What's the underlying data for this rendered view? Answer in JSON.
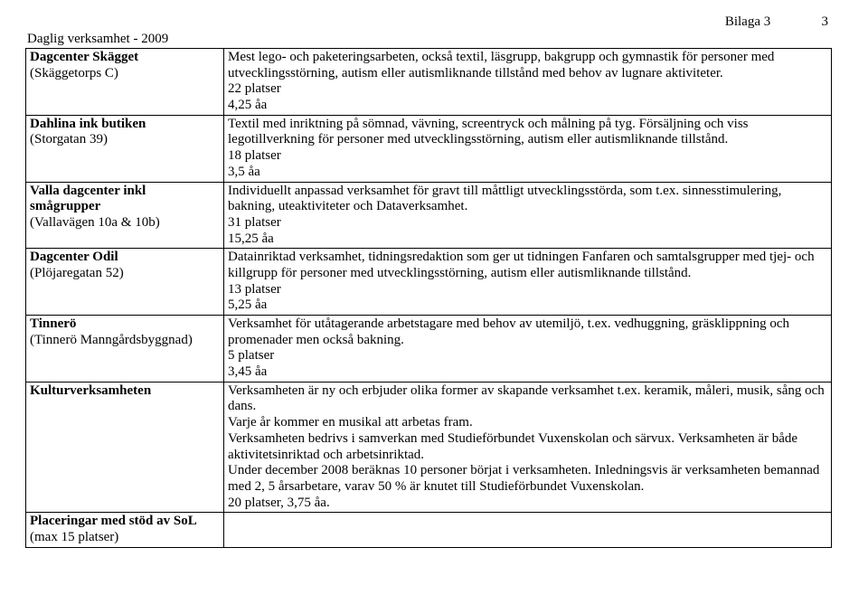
{
  "header": {
    "label": "Bilaga 3",
    "page_number": "3"
  },
  "title": "Daglig verksamhet - 2009",
  "rows": [
    {
      "name": "Dagcenter Skägget",
      "loc": "(Skäggetorps C)",
      "desc": [
        "Mest lego- och paketeringsarbeten, också textil, läsgrupp, bakgrupp och gymnastik för personer med utvecklingsstörning, autism eller autismliknande tillstånd med behov av lugnare aktiviteter.",
        "22 platser",
        "4,25 åa"
      ]
    },
    {
      "name": "Dahlina ink butiken",
      "loc": "(Storgatan 39)",
      "desc": [
        "Textil med inriktning på sömnad, vävning, screentryck och målning på tyg. Försäljning och viss legotillverkning för personer med utvecklingsstörning, autism eller autismliknande tillstånd.",
        "18 platser",
        "3,5 åa"
      ]
    },
    {
      "name": "Valla dagcenter inkl smågrupper",
      "loc": "(Vallavägen 10a & 10b)",
      "desc": [
        "Individuellt anpassad verksamhet för gravt till måttligt utvecklingsstörda, som t.ex. sinnesstimulering, bakning, uteaktiviteter och Dataverksamhet.",
        "31 platser",
        "15,25 åa"
      ]
    },
    {
      "name": "Dagcenter Odil",
      "loc": "(Plöjaregatan 52)",
      "desc": [
        "Datainriktad verksamhet, tidningsredaktion som ger ut tidningen Fanfaren och samtalsgrupper med tjej- och killgrupp för personer med utvecklingsstörning, autism eller autismliknande tillstånd.",
        "13 platser",
        "5,25 åa"
      ]
    },
    {
      "name": "Tinnerö",
      "loc": "(Tinnerö Manngårdsbyggnad)",
      "desc": [
        "Verksamhet för utåtagerande arbetstagare med behov av utemiljö, t.ex. vedhuggning, gräsklippning och promenader men också bakning.",
        "5 platser",
        "3,45 åa"
      ]
    },
    {
      "name": "Kulturverksamheten",
      "loc": "",
      "desc": [
        "Verksamheten är ny och erbjuder olika former av skapande verksamhet t.ex. keramik, måleri, musik, sång och dans.",
        "Varje år kommer en musikal att arbetas fram.",
        "Verksamheten bedrivs i samverkan med Studieförbundet Vuxenskolan och särvux. Verksamheten är både aktivitetsinriktad och arbetsinriktad.",
        "Under december 2008 beräknas 10 personer börjat i verksamheten. Inledningsvis är verksamheten bemannad med 2, 5 årsarbetare, varav 50 % är knutet till Studieförbundet Vuxenskolan.",
        "20 platser, 3,75 åa."
      ]
    },
    {
      "name": "Placeringar med stöd av SoL",
      "loc": "(max 15 platser)",
      "desc": []
    }
  ]
}
